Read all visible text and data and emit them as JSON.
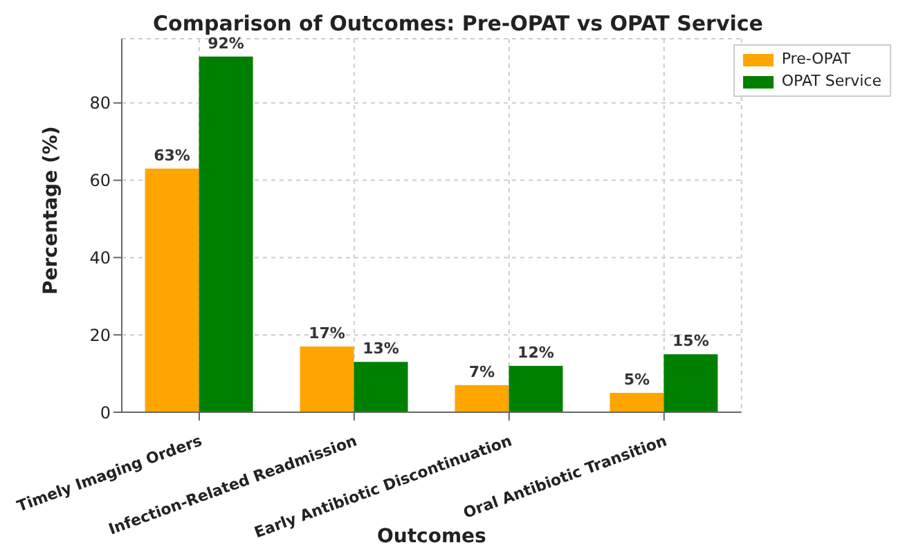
{
  "chart_data": {
    "type": "bar",
    "title": "Comparison of Outcomes: Pre-OPAT vs OPAT Service",
    "xlabel": "Outcomes",
    "ylabel": "Percentage (%)",
    "categories": [
      "Timely Imaging Orders",
      "Infection-Related Readmission",
      "Early Antibiotic Discontinuation",
      "Oral Antibiotic Transition"
    ],
    "series": [
      {
        "name": "Pre-OPAT",
        "color": "#ffa500",
        "values": [
          63,
          17,
          7,
          5
        ],
        "value_labels": [
          "63%",
          "17%",
          "7%",
          "5%"
        ]
      },
      {
        "name": "OPAT Service",
        "color": "#008000",
        "values": [
          92,
          13,
          12,
          15
        ],
        "value_labels": [
          "92%",
          "13%",
          "12%",
          "15%"
        ]
      }
    ],
    "ylim": [
      0,
      96.6
    ],
    "yticks": [
      0,
      20,
      40,
      60,
      80
    ],
    "grid": true,
    "legend": "top right"
  }
}
